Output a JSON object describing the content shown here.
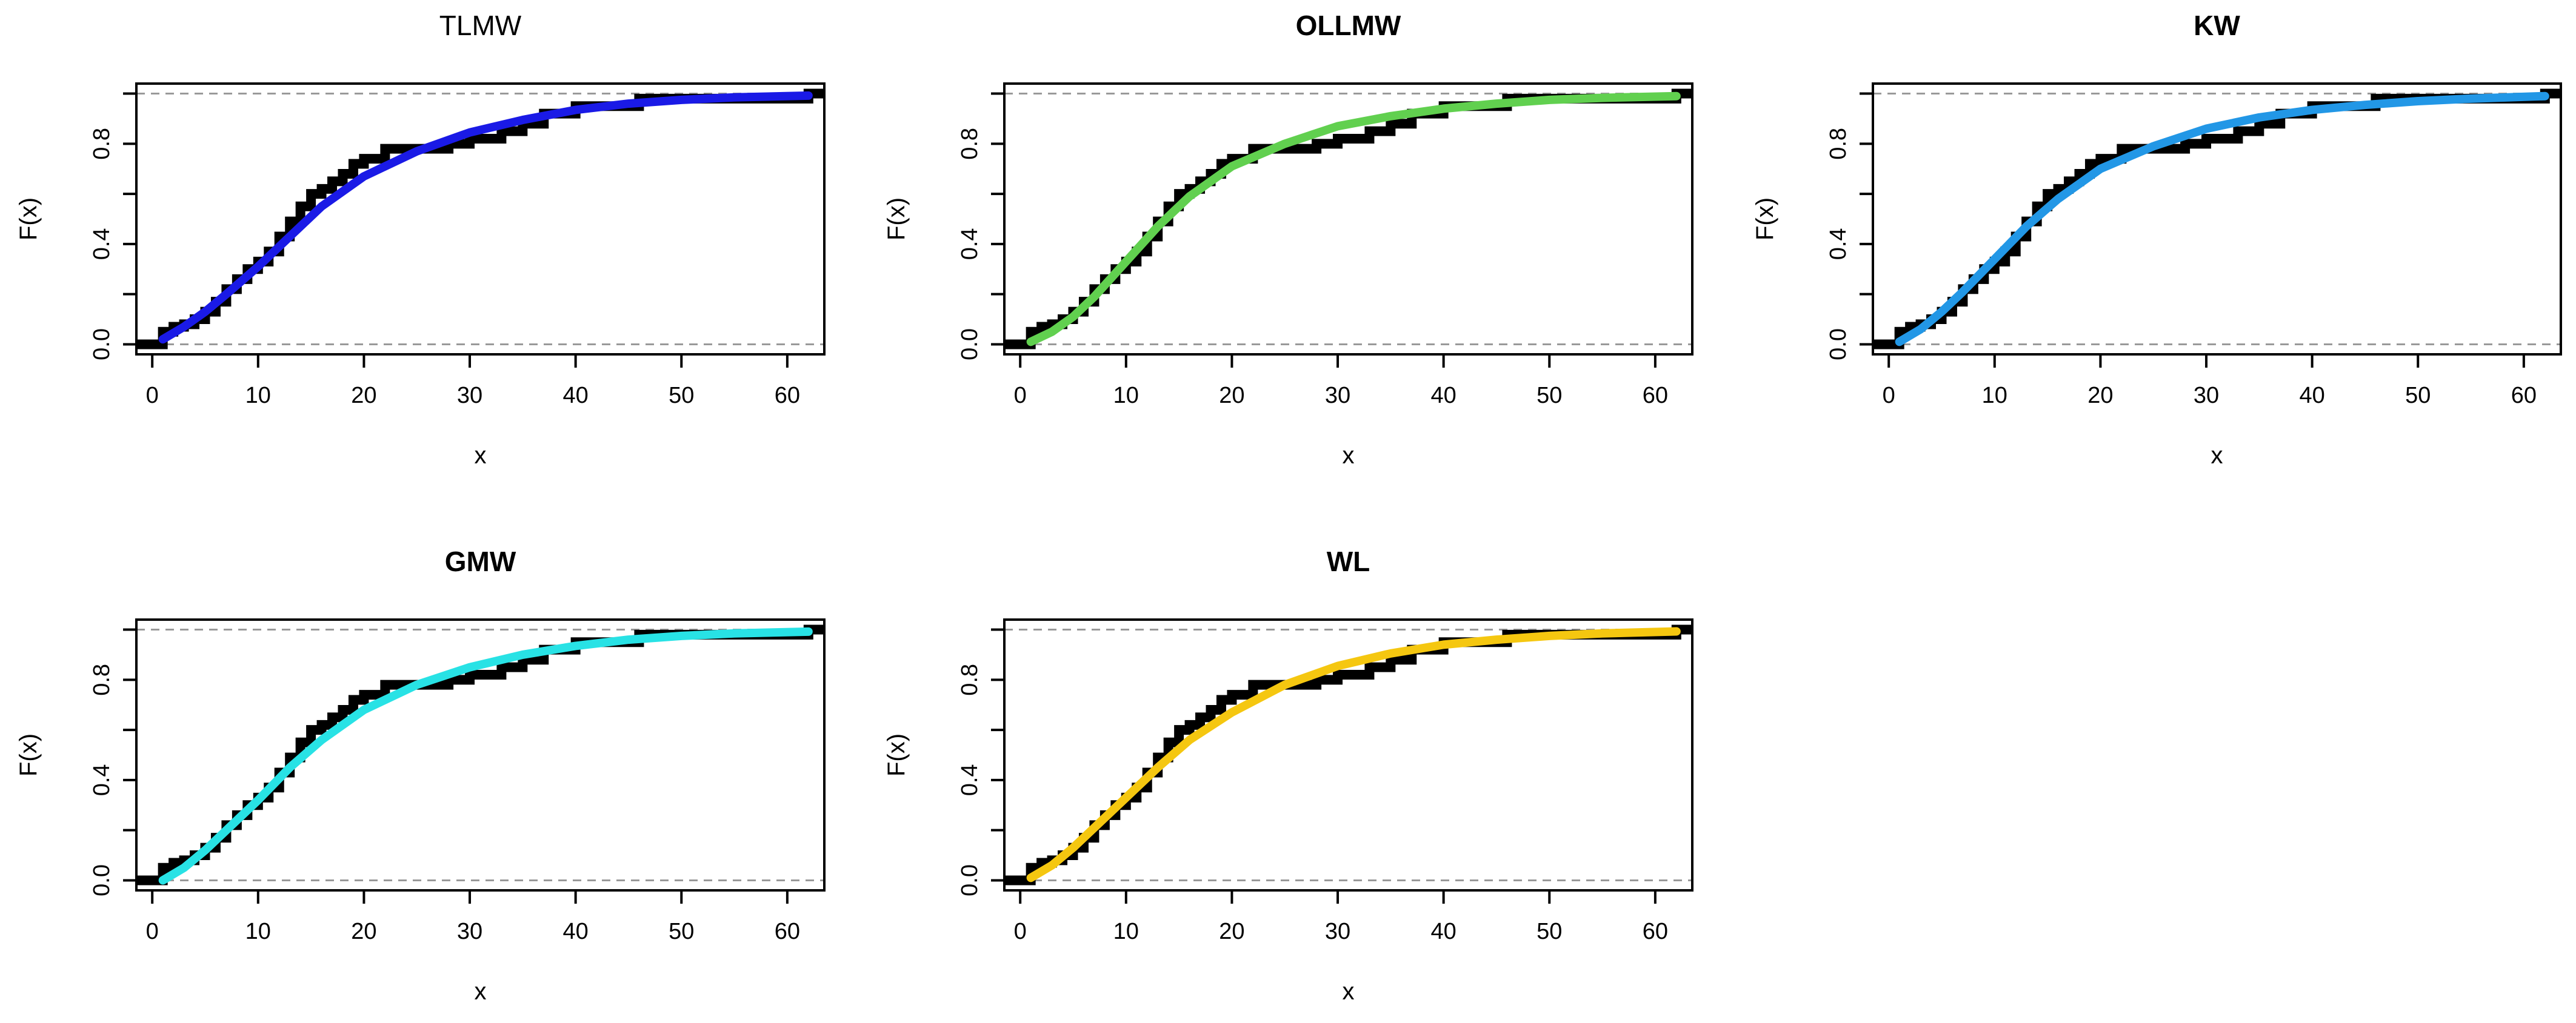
{
  "chart_data": [
    {
      "type": "line",
      "title": "TLMW",
      "title_bold": false,
      "xlabel": "x",
      "ylabel": "F(x)",
      "xlim": [
        -1.5,
        63.5
      ],
      "ylim": [
        -0.04,
        1.04
      ],
      "x_ticks": [
        "0",
        "10",
        "20",
        "30",
        "40",
        "50",
        "60"
      ],
      "y_ticks": [
        "0.0",
        "0.4",
        "0.8"
      ],
      "reference_lines": [
        0,
        1
      ],
      "series": [
        {
          "name": "empirical",
          "color": "#000000",
          "kind": "step"
        },
        {
          "name": "TLMW",
          "color": "#1a1ae6",
          "kind": "cdf",
          "x": [
            1,
            3,
            5,
            7,
            10,
            13,
            16,
            20,
            25,
            30,
            35,
            40,
            45,
            50,
            55,
            62
          ],
          "values": [
            0.02,
            0.07,
            0.13,
            0.2,
            0.31,
            0.43,
            0.55,
            0.67,
            0.77,
            0.845,
            0.895,
            0.935,
            0.96,
            0.975,
            0.985,
            0.992
          ]
        }
      ]
    },
    {
      "type": "line",
      "title": "OLLMW",
      "title_bold": true,
      "xlabel": "x",
      "ylabel": "F(x)",
      "xlim": [
        -1.5,
        63.5
      ],
      "ylim": [
        -0.04,
        1.04
      ],
      "x_ticks": [
        "0",
        "10",
        "20",
        "30",
        "40",
        "50",
        "60"
      ],
      "y_ticks": [
        "0.0",
        "0.4",
        "0.8"
      ],
      "reference_lines": [
        0,
        1
      ],
      "series": [
        {
          "name": "empirical",
          "color": "#000000",
          "kind": "step"
        },
        {
          "name": "OLLMW",
          "color": "#61d04f",
          "kind": "cdf",
          "x": [
            1,
            3,
            5,
            7,
            10,
            13,
            16,
            20,
            25,
            30,
            35,
            40,
            45,
            50,
            55,
            62
          ],
          "values": [
            0.01,
            0.05,
            0.11,
            0.19,
            0.33,
            0.47,
            0.59,
            0.71,
            0.8,
            0.87,
            0.91,
            0.94,
            0.96,
            0.975,
            0.983,
            0.99
          ]
        }
      ]
    },
    {
      "type": "line",
      "title": "KW",
      "title_bold": true,
      "xlabel": "x",
      "ylabel": "F(x)",
      "xlim": [
        -1.5,
        63.5
      ],
      "ylim": [
        -0.04,
        1.04
      ],
      "x_ticks": [
        "0",
        "10",
        "20",
        "30",
        "40",
        "50",
        "60"
      ],
      "y_ticks": [
        "0.0",
        "0.4",
        "0.8"
      ],
      "reference_lines": [
        0,
        1
      ],
      "series": [
        {
          "name": "empirical",
          "color": "#000000",
          "kind": "step"
        },
        {
          "name": "KW",
          "color": "#2297e6",
          "kind": "cdf",
          "x": [
            1,
            3,
            5,
            7,
            10,
            13,
            16,
            20,
            25,
            30,
            35,
            40,
            45,
            50,
            55,
            62
          ],
          "values": [
            0.01,
            0.06,
            0.13,
            0.21,
            0.34,
            0.47,
            0.58,
            0.7,
            0.79,
            0.86,
            0.905,
            0.935,
            0.955,
            0.97,
            0.98,
            0.99
          ]
        }
      ]
    },
    {
      "type": "line",
      "title": "GMW",
      "title_bold": true,
      "xlabel": "x",
      "ylabel": "F(x)",
      "xlim": [
        -1.5,
        63.5
      ],
      "ylim": [
        -0.04,
        1.04
      ],
      "x_ticks": [
        "0",
        "10",
        "20",
        "30",
        "40",
        "50",
        "60"
      ],
      "y_ticks": [
        "0.0",
        "0.4",
        "0.8"
      ],
      "reference_lines": [
        0,
        1
      ],
      "series": [
        {
          "name": "empirical",
          "color": "#000000",
          "kind": "step"
        },
        {
          "name": "GMW",
          "color": "#28e2e5",
          "kind": "cdf",
          "x": [
            1,
            3,
            5,
            7,
            10,
            13,
            16,
            20,
            25,
            30,
            35,
            40,
            45,
            50,
            55,
            62
          ],
          "values": [
            0.0,
            0.05,
            0.12,
            0.2,
            0.32,
            0.45,
            0.56,
            0.68,
            0.78,
            0.85,
            0.9,
            0.935,
            0.96,
            0.975,
            0.985,
            0.992
          ]
        }
      ]
    },
    {
      "type": "line",
      "title": "WL",
      "title_bold": true,
      "xlabel": "x",
      "ylabel": "F(x)",
      "xlim": [
        -1.5,
        63.5
      ],
      "ylim": [
        -0.04,
        1.04
      ],
      "x_ticks": [
        "0",
        "10",
        "20",
        "30",
        "40",
        "50",
        "60"
      ],
      "y_ticks": [
        "0.0",
        "0.4",
        "0.8"
      ],
      "reference_lines": [
        0,
        1
      ],
      "series": [
        {
          "name": "empirical",
          "color": "#000000",
          "kind": "step"
        },
        {
          "name": "WL",
          "color": "#f5c710",
          "kind": "cdf",
          "x": [
            1,
            3,
            5,
            7,
            10,
            13,
            16,
            20,
            25,
            30,
            35,
            40,
            45,
            50,
            55,
            62
          ],
          "values": [
            0.01,
            0.06,
            0.13,
            0.21,
            0.33,
            0.45,
            0.56,
            0.67,
            0.78,
            0.855,
            0.905,
            0.94,
            0.96,
            0.975,
            0.985,
            0.993
          ]
        }
      ]
    }
  ],
  "ecdf": {
    "x": [
      0,
      1,
      2,
      3,
      4,
      5,
      6,
      7,
      8,
      9,
      10,
      11,
      12,
      13,
      14,
      15,
      16,
      17,
      18,
      19,
      20,
      22,
      26,
      28,
      30,
      33,
      35,
      37,
      40,
      46,
      62
    ],
    "values": [
      0.0,
      0.05,
      0.07,
      0.08,
      0.1,
      0.13,
      0.17,
      0.22,
      0.26,
      0.3,
      0.33,
      0.37,
      0.43,
      0.49,
      0.55,
      0.6,
      0.62,
      0.65,
      0.68,
      0.72,
      0.74,
      0.78,
      0.78,
      0.8,
      0.82,
      0.85,
      0.88,
      0.92,
      0.95,
      0.98,
      1.0
    ]
  }
}
